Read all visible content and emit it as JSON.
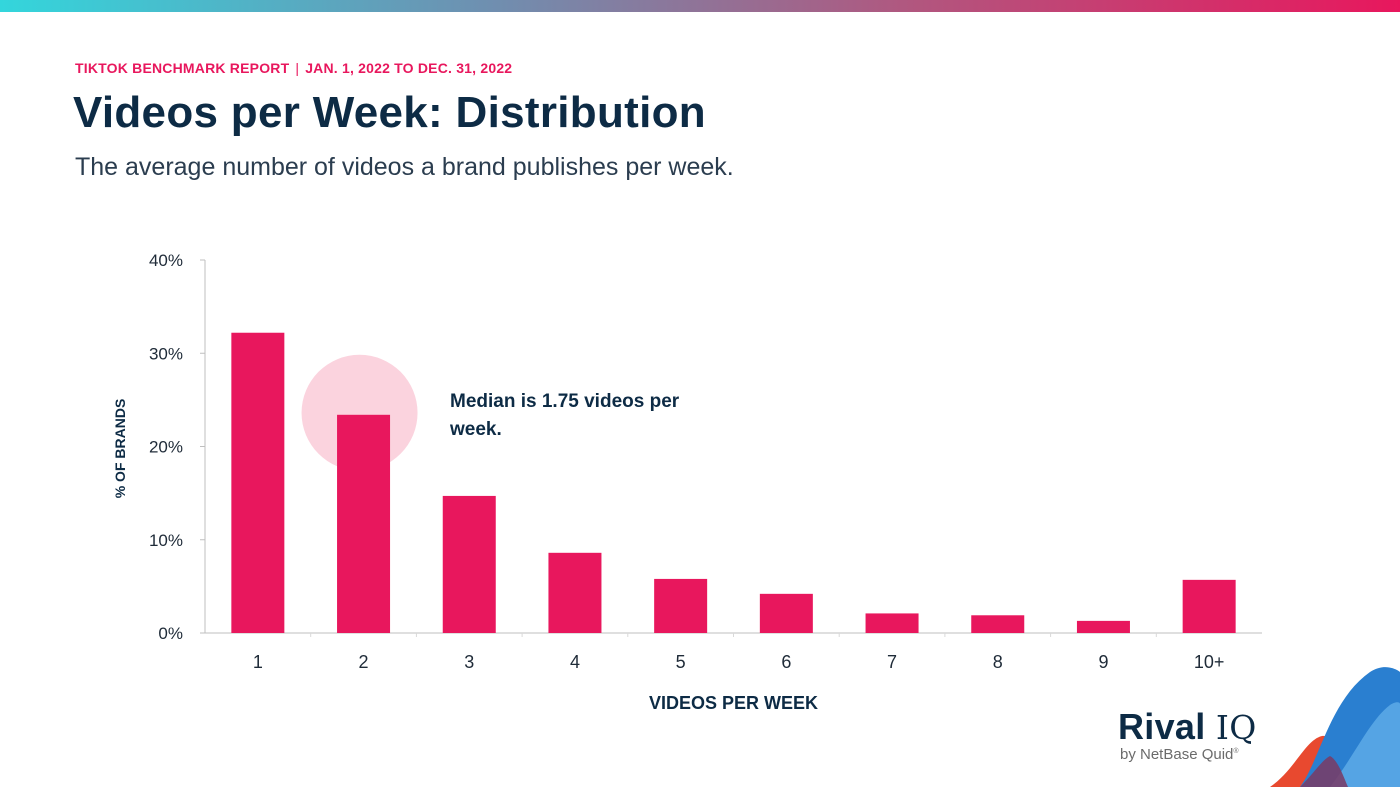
{
  "header": {
    "report": "TIKTOK BENCHMARK REPORT",
    "separator": "|",
    "date_range": "JAN. 1, 2022 TO DEC. 31, 2022",
    "title": "Videos per Week: Distribution",
    "subtitle": "The average number of videos a brand publishes per week."
  },
  "chart_data": {
    "type": "bar",
    "categories": [
      "1",
      "2",
      "3",
      "4",
      "5",
      "6",
      "7",
      "8",
      "9",
      "10+"
    ],
    "values": [
      32.2,
      23.4,
      14.7,
      8.6,
      5.8,
      4.2,
      2.1,
      1.9,
      1.3,
      5.7
    ],
    "value_unit": "%",
    "ylim": [
      0,
      40
    ],
    "yticks": [
      "0%",
      "10%",
      "20%",
      "30%",
      "40%"
    ],
    "xlabel": "VIDEOS PER WEEK",
    "ylabel": "% OF BRANDS",
    "bar_color": "#e8175d",
    "highlight_category": "2",
    "highlight_color": "#fbd3de",
    "annotation": "Median is 1.75 videos per week."
  },
  "brand": {
    "name": "Rival",
    "name_suffix": "IQ",
    "tagline": "by NetBase Quid",
    "tagline_mark": "®"
  }
}
